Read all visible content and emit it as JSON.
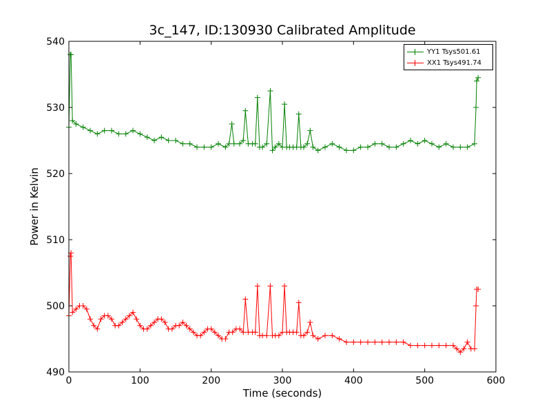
{
  "chart_data": {
    "type": "line",
    "title": "3c_147, ID:130930 Calibrated Amplitude",
    "xlabel": "Time (seconds)",
    "ylabel": "Power in Kelvin",
    "xlim": [
      0,
      600
    ],
    "ylim": [
      490,
      540
    ],
    "x_ticks": [
      "0",
      "100",
      "200",
      "300",
      "400",
      "500",
      "600"
    ],
    "y_ticks": [
      "490",
      "500",
      "510",
      "520",
      "530",
      "540"
    ],
    "grid": false,
    "legend_position": "top-right",
    "marker": "+",
    "series": [
      {
        "name": "YY1 Tsys501.61",
        "color": "#008000",
        "x": [
          0,
          2,
          3,
          5,
          10,
          20,
          30,
          40,
          50,
          60,
          70,
          80,
          90,
          100,
          110,
          120,
          130,
          140,
          150,
          160,
          170,
          180,
          190,
          200,
          210,
          220,
          225,
          229,
          232,
          240,
          245,
          248,
          252,
          258,
          262,
          265,
          268,
          272,
          278,
          283,
          286,
          290,
          295,
          300,
          303,
          306,
          310,
          315,
          320,
          323,
          326,
          330,
          335,
          339,
          343,
          350,
          360,
          370,
          380,
          390,
          400,
          410,
          420,
          430,
          440,
          450,
          460,
          470,
          480,
          490,
          500,
          510,
          520,
          530,
          540,
          550,
          560,
          570,
          572,
          573,
          575
        ],
        "y": [
          527,
          538,
          538,
          528,
          527.5,
          527,
          526.5,
          526,
          526.5,
          526.5,
          526,
          526,
          526.5,
          526,
          525.5,
          525,
          525.5,
          525,
          525,
          524.5,
          524.5,
          524,
          524,
          524,
          524.5,
          524,
          524.5,
          527.5,
          524.5,
          524.5,
          525,
          529.5,
          524.5,
          524.5,
          524.5,
          531.5,
          524,
          524,
          524.5,
          532.5,
          523.5,
          524,
          524.5,
          524,
          530.5,
          524,
          524,
          524,
          524,
          529,
          524,
          524,
          524.5,
          526.5,
          524,
          523.5,
          524,
          524.5,
          524,
          523.5,
          523.5,
          524,
          524,
          524.5,
          524.5,
          524,
          524,
          524.5,
          525,
          524.5,
          525,
          524.5,
          524,
          524.5,
          524,
          524,
          524,
          524.5,
          530,
          534,
          534.5
        ]
      },
      {
        "name": "XX1 Tsys491.74",
        "color": "#ff0000",
        "x": [
          0,
          2,
          3,
          5,
          10,
          15,
          20,
          25,
          30,
          35,
          40,
          45,
          50,
          55,
          60,
          65,
          70,
          75,
          80,
          85,
          90,
          95,
          100,
          105,
          110,
          115,
          120,
          125,
          130,
          135,
          140,
          145,
          150,
          155,
          160,
          165,
          170,
          175,
          180,
          185,
          190,
          195,
          200,
          205,
          210,
          215,
          220,
          225,
          230,
          235,
          240,
          245,
          248,
          252,
          258,
          262,
          265,
          268,
          272,
          278,
          283,
          286,
          290,
          295,
          300,
          303,
          306,
          310,
          315,
          320,
          323,
          326,
          330,
          335,
          339,
          343,
          350,
          360,
          370,
          380,
          390,
          400,
          410,
          420,
          430,
          440,
          450,
          460,
          470,
          480,
          490,
          500,
          510,
          520,
          530,
          540,
          545,
          550,
          555,
          560,
          565,
          570,
          572,
          573,
          575
        ],
        "y": [
          498.5,
          507.5,
          508,
          499,
          499.5,
          500,
          500,
          499.5,
          498,
          497,
          496.5,
          498,
          498.5,
          498.5,
          498,
          497,
          497,
          497.5,
          498,
          498.5,
          499,
          498,
          497,
          496.5,
          496.5,
          497,
          497.5,
          498,
          498,
          497.5,
          496.5,
          496.5,
          497,
          497,
          497.5,
          497,
          496.5,
          496,
          495.5,
          495.5,
          496,
          496.5,
          496.5,
          496,
          495.5,
          495,
          495,
          496,
          496,
          496.5,
          496.5,
          496,
          501,
          496,
          496,
          496,
          503,
          495.5,
          495.5,
          495.5,
          503,
          495.5,
          495.5,
          495.5,
          496,
          503,
          496,
          496,
          496,
          496,
          500.5,
          495.5,
          495.5,
          496,
          497.5,
          495.5,
          495,
          495.5,
          495.5,
          495,
          494.5,
          494.5,
          494.5,
          494.5,
          494.5,
          494.5,
          494.5,
          494.5,
          494.5,
          494,
          494,
          494,
          494,
          494,
          494,
          494,
          493.5,
          493,
          493.5,
          494.5,
          493.5,
          493.5,
          500,
          502.5,
          502.5
        ]
      }
    ]
  }
}
